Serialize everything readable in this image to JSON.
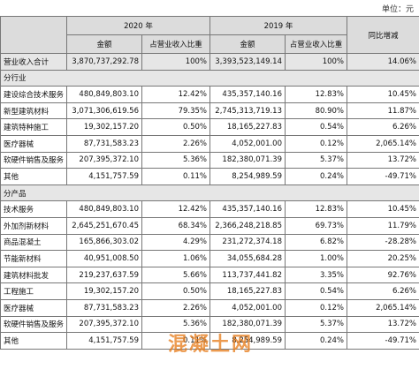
{
  "unit": "单位：元",
  "header": {
    "year1": "2020 年",
    "year2": "2019 年",
    "change": "同比增减",
    "amount1": "金额",
    "ratio1": "占营业收入比重",
    "amount2": "金额",
    "ratio2": "占营业收入比重"
  },
  "rows": [
    {
      "cells": [
        "营业收入合计",
        "3,870,737,292.78",
        "100%",
        "3,393,523,149.14",
        "100%",
        "14.06%"
      ]
    },
    {
      "section": "分行业"
    },
    {
      "cells": [
        "建设综合技术服务",
        "480,849,803.10",
        "12.42%",
        "435,357,140.16",
        "12.83%",
        "10.45%"
      ]
    },
    {
      "cells": [
        "新型建筑材料",
        "3,071,306,619.56",
        "79.35%",
        "2,745,313,719.13",
        "80.90%",
        "11.87%"
      ]
    },
    {
      "cells": [
        "建筑特种施工",
        "19,302,157.20",
        "0.50%",
        "18,165,227.83",
        "0.54%",
        "6.26%"
      ]
    },
    {
      "cells": [
        "医疗器械",
        "87,731,583.23",
        "2.26%",
        "4,052,001.00",
        "0.12%",
        "2,065.14%"
      ]
    },
    {
      "cells": [
        "软硬件销售及服务",
        "207,395,372.10",
        "5.36%",
        "182,380,071.39",
        "5.37%",
        "13.72%"
      ]
    },
    {
      "cells": [
        "其他",
        "4,151,757.59",
        "0.11%",
        "8,254,989.59",
        "0.24%",
        "-49.71%"
      ]
    },
    {
      "section": "分产品"
    },
    {
      "cells": [
        "技术服务",
        "480,849,803.10",
        "12.42%",
        "435,357,140.16",
        "12.83%",
        "10.45%"
      ]
    },
    {
      "cells": [
        "外加剂新材料",
        "2,645,251,670.45",
        "68.34%",
        "2,366,248,218.85",
        "69.73%",
        "11.79%"
      ]
    },
    {
      "cells": [
        "商品混凝土",
        "165,866,303.02",
        "4.29%",
        "231,272,374.18",
        "6.82%",
        "-28.28%"
      ]
    },
    {
      "cells": [
        "节能新材料",
        "40,951,008.50",
        "1.06%",
        "34,055,684.28",
        "1.00%",
        "20.25%"
      ]
    },
    {
      "cells": [
        "建筑材料批发",
        "219,237,637.59",
        "5.66%",
        "113,737,441.82",
        "3.35%",
        "92.76%"
      ]
    },
    {
      "cells": [
        "工程施工",
        "19,302,157.20",
        "0.50%",
        "18,165,227.83",
        "0.54%",
        "6.26%"
      ]
    },
    {
      "cells": [
        "医疗器械",
        "87,731,583.23",
        "2.26%",
        "4,052,001.00",
        "0.12%",
        "2,065.14%"
      ]
    },
    {
      "cells": [
        "软硬件销售及服务",
        "207,395,372.10",
        "5.36%",
        "182,380,071.39",
        "5.37%",
        "13.72%"
      ]
    },
    {
      "cells": [
        "其他",
        "4,151,757.59",
        "0.11%",
        "8,254,989.59",
        "0.24%",
        "-49.71%"
      ]
    }
  ],
  "watermark": "混凝土网"
}
